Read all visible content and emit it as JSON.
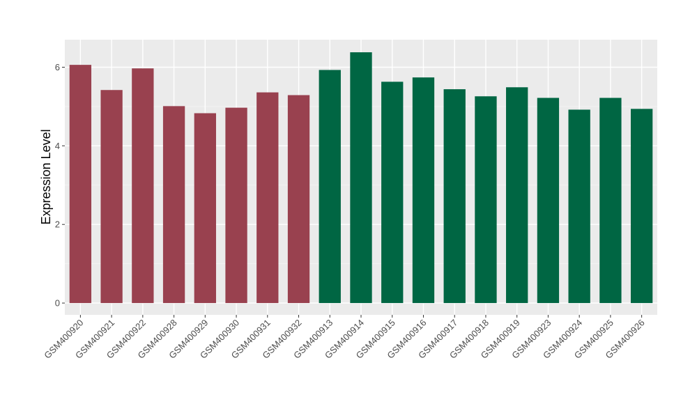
{
  "chart_data": {
    "type": "bar",
    "ylabel": "Expression Level",
    "xlabel": "",
    "ylim": [
      -0.3,
      6.7
    ],
    "yticks": [
      0,
      2,
      4,
      6
    ],
    "grid": true,
    "panel_color": "#ebebeb",
    "categories": [
      "GSM400920",
      "GSM400921",
      "GSM400922",
      "GSM400928",
      "GSM400929",
      "GSM400930",
      "GSM400931",
      "GSM400932",
      "GSM400913",
      "GSM400914",
      "GSM400915",
      "GSM400916",
      "GSM400917",
      "GSM400918",
      "GSM400919",
      "GSM400923",
      "GSM400924",
      "GSM400925",
      "GSM400926"
    ],
    "values": [
      6.06,
      5.42,
      5.97,
      5.01,
      4.83,
      4.97,
      5.36,
      5.29,
      5.93,
      6.38,
      5.63,
      5.74,
      5.44,
      5.26,
      5.49,
      5.22,
      4.92,
      5.22,
      4.94
    ],
    "group_colors": [
      "#99414f",
      "#99414f",
      "#99414f",
      "#99414f",
      "#99414f",
      "#99414f",
      "#99414f",
      "#99414f",
      "#006643",
      "#006643",
      "#006643",
      "#006643",
      "#006643",
      "#006643",
      "#006643",
      "#006643",
      "#006643",
      "#006643",
      "#006643"
    ]
  }
}
